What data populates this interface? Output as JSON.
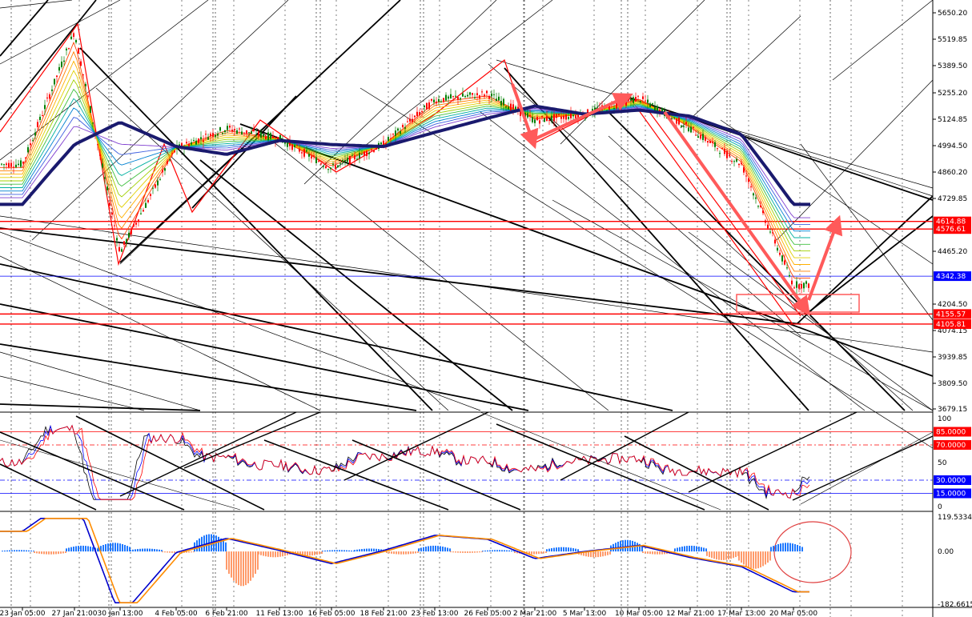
{
  "chart_data": {
    "type": "line",
    "main_axis": {
      "ticks": [
        5650.2,
        5519.85,
        5389.5,
        5255.2,
        5124.85,
        4994.5,
        4860.2,
        4729.85,
        4465.2,
        4204.5,
        4074.15,
        3939.85,
        3809.5,
        3679.15
      ],
      "tick_labels": [
        "5650.20",
        "5519.85",
        "5389.50",
        "5255.20",
        "5124.85",
        "4994.50",
        "4860.20",
        "4729.85",
        "4465.20",
        "4204.50",
        "4074.15",
        "3939.85",
        "3809.50",
        "3679.15"
      ],
      "ylim": [
        3679.15,
        5700
      ]
    },
    "price_levels": [
      {
        "label": "4614.88",
        "value": 4614.88,
        "color": "#ff0000"
      },
      {
        "label": "4576.61",
        "value": 4576.61,
        "color": "#ff0000"
      },
      {
        "label": "4342.38",
        "value": 4342.38,
        "color": "#0000ff"
      },
      {
        "label": "4155.57",
        "value": 4155.57,
        "color": "#ff0000"
      },
      {
        "label": "4105.81",
        "value": 4105.81,
        "color": "#ff0000"
      }
    ],
    "x_labels": [
      "23 Jan 05:00",
      "27 Jan 21:00",
      "30 Jan 13:00",
      "4 Feb 05:00",
      "6 Feb 21:00",
      "11 Feb 13:00",
      "16 Feb 05:00",
      "18 Feb 21:00",
      "23 Feb 13:00",
      "26 Feb 05:00",
      "2 Mar 21:00",
      "5 Mar 13:00",
      "10 Mar 05:00",
      "12 Mar 21:00",
      "17 Mar 13:00",
      "20 Mar 05:00"
    ],
    "price_path": {
      "x": [
        "23 Jan 05:00",
        "27 Jan 21:00",
        "30 Jan 13:00",
        "4 Feb 05:00",
        "6 Feb 21:00",
        "11 Feb 13:00",
        "16 Feb 05:00",
        "18 Feb 21:00",
        "23 Feb 13:00",
        "26 Feb 05:00",
        "2 Mar 21:00",
        "5 Mar 13:00",
        "10 Mar 05:00",
        "12 Mar 21:00",
        "17 Mar 13:00",
        "20 Mar 05:00"
      ],
      "y": [
        4900,
        5560,
        4460,
        4980,
        5080,
        5030,
        4880,
        5000,
        5220,
        5250,
        5120,
        5150,
        5230,
        5080,
        4900,
        4300
      ]
    },
    "ma_path": {
      "x": [
        "23 Jan 05:00",
        "27 Jan 21:00",
        "30 Jan 13:00",
        "4 Feb 05:00",
        "6 Feb 21:00",
        "11 Feb 13:00",
        "16 Feb 05:00",
        "18 Feb 21:00",
        "23 Feb 13:00",
        "26 Feb 05:00",
        "2 Mar 21:00",
        "5 Mar 13:00",
        "10 Mar 05:00",
        "12 Mar 21:00",
        "17 Mar 13:00",
        "20 Mar 05:00"
      ],
      "y": [
        4700,
        5000,
        5110,
        4990,
        4950,
        5020,
        5000,
        4990,
        5060,
        5130,
        5190,
        5150,
        5170,
        5140,
        5050,
        4700
      ]
    },
    "rsi_panel": {
      "ticks": [
        100,
        85.0,
        70.0,
        50,
        30.0,
        15.0,
        0
      ],
      "tick_labels": [
        "100",
        "85.0000",
        "70.0000",
        "50",
        "30.0000",
        "15.0000",
        "0"
      ],
      "highlight": [
        "85.0000",
        "70.0000",
        "30.0000",
        "15.0000"
      ]
    },
    "macd_panel": {
      "ticks": [
        119.5334,
        0.0,
        -182.6615
      ],
      "tick_labels": [
        "119.5334",
        "0.00",
        "-182.6615"
      ],
      "histogram": [
        5,
        -10,
        20,
        30,
        10,
        -5,
        60,
        -120,
        -20,
        -15,
        5,
        10,
        -10,
        20,
        -5,
        5,
        -10,
        15,
        -20,
        40,
        -10,
        20,
        -30,
        -60,
        30
      ]
    },
    "colors": {
      "bull_candle": "#008000",
      "bear_candle": "#ff0000",
      "ma_thick": "#1a1a6e",
      "arrow": "#ff5a5a",
      "tag_red": "#ff0000",
      "tag_blue": "#0000ff"
    }
  }
}
